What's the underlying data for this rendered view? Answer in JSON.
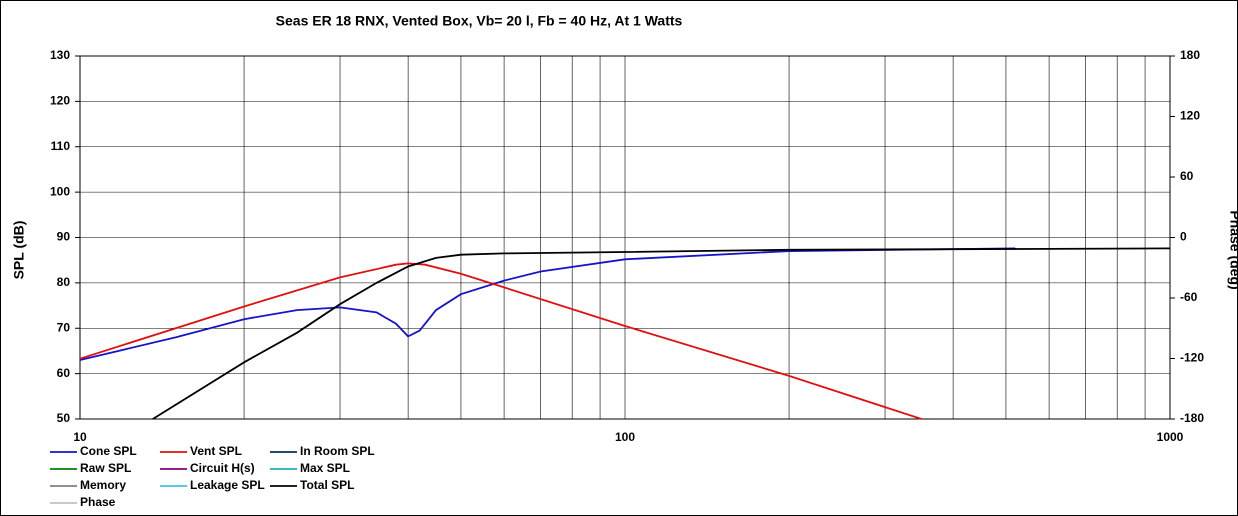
{
  "chart_data": {
    "type": "line",
    "title": "Seas ER 18 RNX,  Vented Box, Vb= 20 l,  Fb = 40 Hz,  At 1 Watts",
    "ylabel": "SPL (dB)",
    "y2label": "Phase (deg)",
    "xscale": "log",
    "grid": true,
    "xlim": [
      10,
      1000
    ],
    "xticks": [
      10,
      100,
      1000
    ],
    "xminor": [
      20,
      30,
      40,
      50,
      60,
      70,
      80,
      90,
      200,
      300,
      400,
      500,
      600,
      700,
      800,
      900
    ],
    "ylim": [
      50,
      130
    ],
    "yticks": [
      50,
      60,
      70,
      80,
      90,
      100,
      110,
      120,
      130
    ],
    "y2lim": [
      -180,
      180
    ],
    "y2ticks": [
      -180,
      -120,
      -60,
      0,
      60,
      120,
      180
    ],
    "series": [
      {
        "name": "Cone SPL",
        "color": "#1414c8",
        "x": [
          10,
          15,
          20,
          25,
          30,
          35,
          38,
          40,
          42,
          45,
          50,
          60,
          70,
          100,
          200,
          520
        ],
        "values": [
          63,
          68,
          72,
          74,
          74.6,
          73.5,
          71,
          68.2,
          69.5,
          74,
          77.5,
          80.5,
          82.5,
          85.2,
          87,
          87.6
        ]
      },
      {
        "name": "Vent SPL",
        "color": "#e01010",
        "x": [
          10,
          20,
          30,
          38,
          40,
          43,
          50,
          60,
          100,
          200,
          350
        ],
        "values": [
          63.3,
          74.8,
          81.2,
          84,
          84.3,
          84,
          82,
          79,
          70.5,
          59.5,
          50
        ]
      },
      {
        "name": "In Room SPL",
        "color": "#00305a"
      },
      {
        "name": "Raw SPL",
        "color": "#008000"
      },
      {
        "name": "Circuit H(s)",
        "color": "#800080"
      },
      {
        "name": "Max SPL",
        "color": "#20b0b0"
      },
      {
        "name": "Memory",
        "color": "#808080"
      },
      {
        "name": "Leakage SPL",
        "color": "#40c0e8"
      },
      {
        "name": "Total SPL",
        "color": "#000000",
        "x": [
          13.6,
          20,
          25,
          30,
          35,
          40,
          45,
          50,
          60,
          100,
          200,
          1000
        ],
        "values": [
          50,
          62.5,
          69,
          75.3,
          80,
          83.6,
          85.5,
          86.2,
          86.5,
          86.8,
          87.3,
          87.6
        ]
      },
      {
        "name": "Phase",
        "color": "#c0c0c0"
      }
    ]
  }
}
